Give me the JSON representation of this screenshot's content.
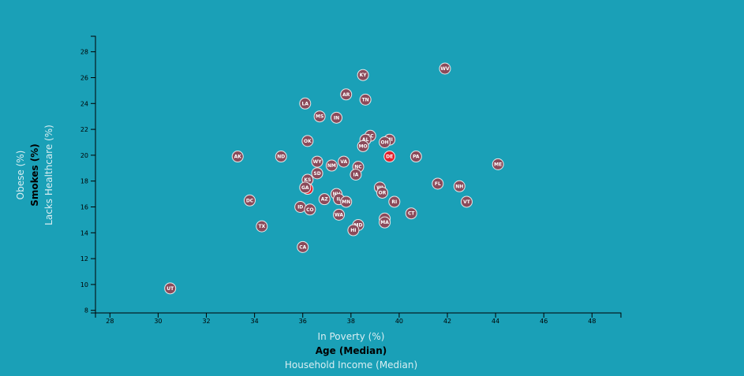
{
  "colors": {
    "background": "#1aa0b7",
    "dot": "#8b4a5a",
    "dot_highlight": "#e3222e",
    "label": "#ffffff"
  },
  "chart_data": {
    "type": "scatter",
    "x_axis": {
      "labels": [
        {
          "text": "In Poverty (%)",
          "active": false
        },
        {
          "text": "Age (Median)",
          "active": true
        },
        {
          "text": "Household Income (Median)",
          "active": false
        }
      ],
      "range": [
        27.4,
        49.2
      ],
      "ticks": [
        28,
        30,
        32,
        34,
        36,
        38,
        40,
        42,
        44,
        46,
        48
      ]
    },
    "y_axis": {
      "labels": [
        {
          "text": "Obese (%)",
          "active": false
        },
        {
          "text": "Smokes (%)",
          "active": true
        },
        {
          "text": "Lacks Healthcare (%)",
          "active": false
        }
      ],
      "range": [
        7.8,
        29.2
      ],
      "ticks": [
        8,
        10,
        12,
        14,
        16,
        18,
        20,
        22,
        24,
        26,
        28
      ]
    },
    "points": [
      {
        "abbr": "WV",
        "x": 41.9,
        "y": 26.7
      },
      {
        "abbr": "KY",
        "x": 38.5,
        "y": 26.2
      },
      {
        "abbr": "AR",
        "x": 37.8,
        "y": 24.7
      },
      {
        "abbr": "TN",
        "x": 38.6,
        "y": 24.3
      },
      {
        "abbr": "LA",
        "x": 36.1,
        "y": 24.0
      },
      {
        "abbr": "MS",
        "x": 36.7,
        "y": 23.0
      },
      {
        "abbr": "IN",
        "x": 37.4,
        "y": 22.9
      },
      {
        "abbr": "SC",
        "x": 38.8,
        "y": 21.5
      },
      {
        "abbr": "AL",
        "x": 38.6,
        "y": 21.2
      },
      {
        "abbr": "MI",
        "x": 39.6,
        "y": 21.2
      },
      {
        "abbr": "OH",
        "x": 39.4,
        "y": 21.0
      },
      {
        "abbr": "OK",
        "x": 36.2,
        "y": 21.1
      },
      {
        "abbr": "MO",
        "x": 38.5,
        "y": 20.7
      },
      {
        "abbr": "AK",
        "x": 33.3,
        "y": 19.9
      },
      {
        "abbr": "ND",
        "x": 35.1,
        "y": 19.9
      },
      {
        "abbr": "DE",
        "x": 39.6,
        "y": 19.9,
        "highlight": true
      },
      {
        "abbr": "PA",
        "x": 40.7,
        "y": 19.9
      },
      {
        "abbr": "WY",
        "x": 36.6,
        "y": 19.5
      },
      {
        "abbr": "VA",
        "x": 37.7,
        "y": 19.5
      },
      {
        "abbr": "ME",
        "x": 44.1,
        "y": 19.3
      },
      {
        "abbr": "NM",
        "x": 37.2,
        "y": 19.2
      },
      {
        "abbr": "NC",
        "x": 38.3,
        "y": 19.1
      },
      {
        "abbr": "SD",
        "x": 36.6,
        "y": 18.6
      },
      {
        "abbr": "IA",
        "x": 38.2,
        "y": 18.5
      },
      {
        "abbr": "KS",
        "x": 36.2,
        "y": 18.1
      },
      {
        "abbr": "FL",
        "x": 41.6,
        "y": 17.8
      },
      {
        "abbr": "NH",
        "x": 42.5,
        "y": 17.6
      },
      {
        "abbr": "WI",
        "x": 39.2,
        "y": 17.5
      },
      {
        "abbr": "NE",
        "x": 36.2,
        "y": 17.4,
        "highlight": true
      },
      {
        "abbr": "GA",
        "x": 36.1,
        "y": 17.5
      },
      {
        "abbr": "OR",
        "x": 39.3,
        "y": 17.1
      },
      {
        "abbr": "NV",
        "x": 37.4,
        "y": 17.0
      },
      {
        "abbr": "AZ",
        "x": 36.9,
        "y": 16.6
      },
      {
        "abbr": "IL",
        "x": 37.5,
        "y": 16.6
      },
      {
        "abbr": "MN",
        "x": 37.8,
        "y": 16.4
      },
      {
        "abbr": "DC",
        "x": 33.8,
        "y": 16.5
      },
      {
        "abbr": "RI",
        "x": 39.8,
        "y": 16.4
      },
      {
        "abbr": "VT",
        "x": 42.8,
        "y": 16.4
      },
      {
        "abbr": "ID",
        "x": 35.9,
        "y": 16.0
      },
      {
        "abbr": "CO",
        "x": 36.3,
        "y": 15.8
      },
      {
        "abbr": "CT",
        "x": 40.5,
        "y": 15.5
      },
      {
        "abbr": "WA",
        "x": 37.5,
        "y": 15.4
      },
      {
        "abbr": "NJ",
        "x": 39.4,
        "y": 15.1
      },
      {
        "abbr": "MA",
        "x": 39.4,
        "y": 14.8
      },
      {
        "abbr": "MD",
        "x": 38.3,
        "y": 14.6
      },
      {
        "abbr": "HI",
        "x": 38.1,
        "y": 14.2
      },
      {
        "abbr": "TX",
        "x": 34.3,
        "y": 14.5
      },
      {
        "abbr": "CA",
        "x": 36.0,
        "y": 12.9
      },
      {
        "abbr": "UT",
        "x": 30.5,
        "y": 9.7
      }
    ]
  }
}
